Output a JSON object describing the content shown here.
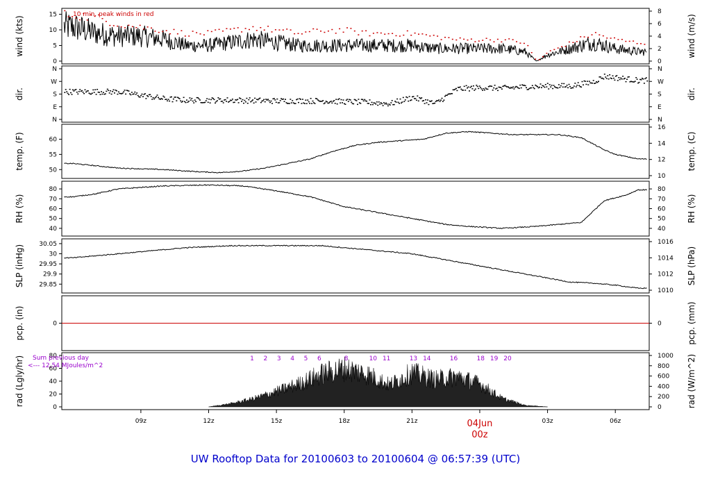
{
  "footer": {
    "title": "UW Rooftop Data for 20100603  to  20100604 @ 06:57:39  (UTC)"
  },
  "colors": {
    "peak": "#cc0000",
    "precip": "#cc0000",
    "accent_purple": "#9900cc",
    "footer": "#0000cc",
    "date_red": "#cc0000"
  },
  "chart_data": [
    {
      "type": "line",
      "panel": "wind",
      "ylabel": "wind (kts)",
      "y2label": "wind (m/s)",
      "ylim": [
        0,
        16
      ],
      "yticks": [
        0,
        5,
        10,
        15
      ],
      "y2ticks": [
        0,
        2,
        4,
        6,
        8
      ],
      "annotation": "10 min. peak winds in red",
      "x_hours": [
        6,
        7,
        8,
        9,
        10,
        11,
        12,
        13,
        14,
        15,
        16,
        17,
        18,
        19,
        20,
        21,
        22,
        23,
        24,
        25,
        26,
        26.5,
        27,
        28,
        29,
        30,
        31
      ],
      "series": [
        {
          "name": "wind",
          "values": [
            11,
            9,
            8,
            8,
            7,
            5,
            5,
            6,
            7,
            6,
            5,
            5,
            5,
            5,
            5,
            5,
            4,
            4,
            4,
            4,
            3,
            0,
            2,
            4,
            6,
            4,
            3
          ]
        },
        {
          "name": "peak",
          "values": [
            15,
            14,
            12,
            11,
            10,
            9,
            9,
            10,
            11,
            10,
            9,
            10,
            10,
            9,
            9,
            9,
            8,
            7,
            7,
            7,
            6,
            0,
            3,
            6,
            9,
            7,
            6
          ]
        }
      ]
    },
    {
      "type": "scatter",
      "panel": "dir",
      "ylabel": "dir.",
      "y2label": "dir.",
      "yticklabels": [
        "N",
        "E",
        "S",
        "W",
        "N"
      ],
      "ylim": [
        0,
        360
      ],
      "x_hours": [
        6,
        8,
        10,
        11,
        13,
        15,
        17,
        19,
        20,
        21,
        22,
        23,
        24,
        25,
        26,
        27,
        28,
        29,
        29.5,
        30,
        31
      ],
      "values": [
        200,
        200,
        150,
        140,
        140,
        135,
        135,
        125,
        115,
        160,
        115,
        220,
        230,
        225,
        235,
        240,
        240,
        270,
        310,
        300,
        280
      ]
    },
    {
      "type": "line",
      "panel": "temp",
      "ylabel": "temp. (F)",
      "y2label": "temp. (C)",
      "ylim": [
        48,
        64
      ],
      "yticks": [
        50,
        55,
        60
      ],
      "y2ticks": [
        10,
        12,
        14,
        16
      ],
      "x_hours": [
        6,
        8,
        10,
        11.5,
        12.5,
        13.5,
        14.5,
        15.5,
        16.5,
        17.5,
        18.5,
        19.5,
        20.5,
        21.5,
        22.5,
        23.5,
        24.5,
        25.5,
        26.5,
        27.5,
        28.5,
        29.5,
        30,
        31
      ],
      "values": [
        52,
        50.5,
        50,
        49.3,
        49,
        49.5,
        50.5,
        52,
        53.5,
        56,
        58,
        59,
        59.5,
        60,
        62,
        62.5,
        62,
        61.5,
        61.5,
        61.5,
        60.5,
        56.5,
        55,
        53.5
      ]
    },
    {
      "type": "line",
      "panel": "rh",
      "ylabel": "RH (%)",
      "y2label": "RH (%)",
      "ylim": [
        35,
        85
      ],
      "yticks": [
        40,
        50,
        60,
        70,
        80
      ],
      "x_hours": [
        6,
        7,
        8,
        10,
        12,
        13.5,
        15,
        16.5,
        18,
        19.5,
        20.5,
        21.5,
        22.5,
        23.5,
        25,
        26.5,
        27.5,
        28.5,
        29,
        29.5,
        30.5,
        31
      ],
      "values": [
        72,
        75,
        80,
        83,
        84,
        83,
        78,
        72,
        62,
        56,
        52,
        48,
        44,
        42,
        40,
        42,
        44,
        46,
        57,
        68,
        74,
        79
      ]
    },
    {
      "type": "line",
      "panel": "slp",
      "ylabel": "SLP (inHg)",
      "y2label": "SLP (hPa)",
      "ylim": [
        29.82,
        30.06
      ],
      "yticks": [
        29.85,
        29.9,
        29.95,
        30.0,
        30.05
      ],
      "y2ticks": [
        1010,
        1012,
        1014,
        1016
      ],
      "x_hours": [
        6,
        7,
        9,
        11,
        13,
        15,
        17,
        19,
        21,
        22,
        23,
        24,
        25,
        26,
        27,
        28,
        29,
        30,
        31
      ],
      "values": [
        29.98,
        29.99,
        30.01,
        30.03,
        30.04,
        30.04,
        30.04,
        30.02,
        30.0,
        29.98,
        29.96,
        29.94,
        29.92,
        29.9,
        29.88,
        29.86,
        29.855,
        29.845,
        29.83
      ]
    },
    {
      "type": "line",
      "panel": "pcp",
      "ylabel": "pcp. (in)",
      "y2label": "pcp. (mm)",
      "yticks": [
        0
      ],
      "y2ticks": [
        0
      ],
      "x_hours": [
        6,
        31
      ],
      "values": [
        0,
        0
      ]
    },
    {
      "type": "area",
      "panel": "rad",
      "ylabel": "rad (Lgly/hr)",
      "y2label": "rad (W/m^2)",
      "ylim": [
        0,
        80
      ],
      "yticks": [
        0,
        20,
        40,
        60,
        80
      ],
      "y2ticks": [
        0,
        200,
        400,
        600,
        800,
        1000
      ],
      "annotation_line1": "Sum previous day",
      "annotation_line2": "<--- 12.54 MJoules/m^2",
      "hour_labels": [
        "1",
        "2",
        "3",
        "4",
        "5",
        "6",
        "8",
        "10",
        "11",
        "13",
        "14",
        "16",
        "18",
        "19",
        "20"
      ],
      "x_hours": [
        12,
        13,
        14,
        15,
        16,
        17,
        18,
        19,
        20,
        21,
        22,
        23,
        24,
        25,
        26,
        27
      ],
      "values": [
        0,
        6,
        15,
        28,
        42,
        60,
        70,
        60,
        40,
        62,
        50,
        55,
        42,
        15,
        3,
        0
      ]
    }
  ],
  "xaxis": {
    "tick_labels": [
      "09z",
      "12z",
      "15z",
      "18z",
      "21z",
      "00z",
      "03z",
      "06z"
    ],
    "date_label": "04Jun",
    "date_time_label": "00z"
  }
}
